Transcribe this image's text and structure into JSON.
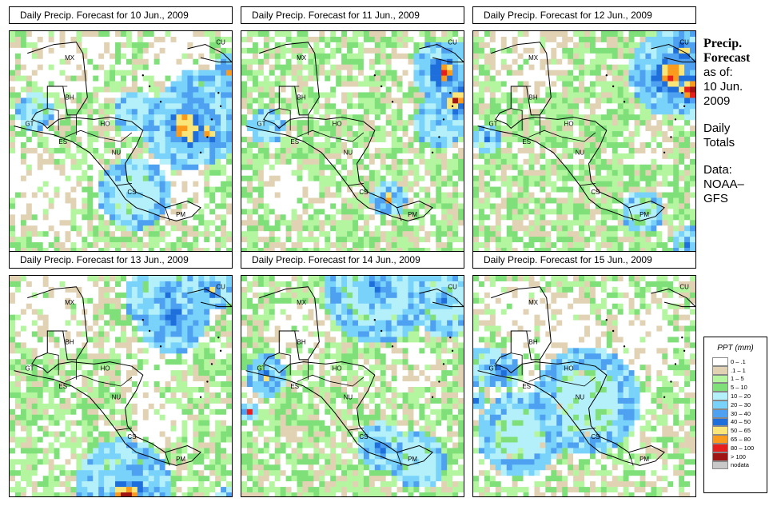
{
  "palette": {
    "c0": "#ffffff",
    "c1": "#e1d2b4",
    "c2": "#b4f5a0",
    "c3": "#7fe07a",
    "c4": "#b4f0fa",
    "c5": "#78d2fa",
    "c6": "#4ea0f0",
    "c7": "#1e6edc",
    "c8": "#fae678",
    "c9": "#fa9b1e",
    "c10": "#e61e1e",
    "c11": "#a01414",
    "nd": "#c8c8c8"
  },
  "panels": [
    {
      "title": "Daily Precip. Forecast for  10 Jun., 2009",
      "profile": "p10"
    },
    {
      "title": "Daily Precip. Forecast for  11 Jun., 2009",
      "profile": "p11"
    },
    {
      "title": "Daily Precip. Forecast for  12 Jun., 2009",
      "profile": "p12"
    },
    {
      "title": "Daily Precip. Forecast for  13 Jun., 2009",
      "profile": "p13"
    },
    {
      "title": "Daily Precip. Forecast for  14 Jun., 2009",
      "profile": "p14"
    },
    {
      "title": "Daily Precip. Forecast for  15 Jun., 2009",
      "profile": "p15"
    }
  ],
  "map_labels": {
    "mx": "MX",
    "bh": "BH",
    "gt": "GT",
    "ho": "HO",
    "es": "ES",
    "nu": "NU",
    "cs": "CS",
    "pm": "PM",
    "cu": "CU"
  },
  "side": {
    "heading1": "Precip.",
    "heading2": "Forecast",
    "asof1": "as of:",
    "asof2": "10 Jun.",
    "asof3": "2009",
    "daily1": "Daily",
    "daily2": "Totals",
    "data1": "Data:",
    "data2": "NOAA–",
    "data3": "GFS"
  },
  "legend": {
    "title": "PPT (mm)",
    "items": [
      {
        "label": "0 – .1",
        "color": "#ffffff"
      },
      {
        "label": ".1 – 1",
        "color": "#e1d2b4"
      },
      {
        "label": "1 – 5",
        "color": "#b4f5a0"
      },
      {
        "label": "5 – 10",
        "color": "#7fe07a"
      },
      {
        "label": "10 – 20",
        "color": "#b4f0fa"
      },
      {
        "label": "20 – 30",
        "color": "#78d2fa"
      },
      {
        "label": "30 – 40",
        "color": "#4ea0f0"
      },
      {
        "label": "40 – 50",
        "color": "#1e6edc"
      },
      {
        "label": "50 – 65",
        "color": "#fae678"
      },
      {
        "label": "65 – 80",
        "color": "#fa9b1e"
      },
      {
        "label": "80 – 100",
        "color": "#e61e1e"
      },
      {
        "label": "> 100",
        "color": "#a01414"
      },
      {
        "label": "nodata",
        "color": "#c8c8c8"
      }
    ]
  }
}
